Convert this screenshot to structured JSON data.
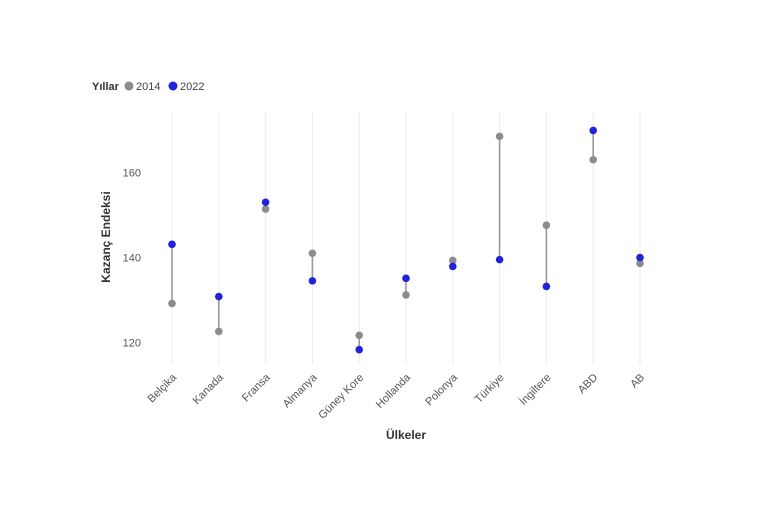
{
  "chart_data": {
    "type": "dumbbell",
    "xlabel": "Ülkeler",
    "ylabel": "Kazanç Endeksi",
    "ylim": [
      115,
      174
    ],
    "yticks": [
      120,
      140,
      160
    ],
    "grid": "vertical",
    "legend": {
      "title": "Yıllar",
      "placement": "top-left",
      "entries": [
        {
          "label": "2014",
          "color": "#8c8c8c"
        },
        {
          "label": "2022",
          "color": "#2222dd"
        }
      ]
    },
    "categories": [
      "Belçika",
      "Kanada",
      "Fransa",
      "Almanya",
      "Güney Kore",
      "Hollanda",
      "Polonya",
      "Türkiye",
      "İngiltere",
      "ABD",
      "AB"
    ],
    "series": [
      {
        "name": "2014",
        "color": "#8c8c8c",
        "values": [
          129.2,
          122.6,
          151.4,
          141.0,
          121.7,
          131.2,
          139.3,
          168.5,
          147.6,
          163.0,
          138.6
        ]
      },
      {
        "name": "2022",
        "color": "#2222dd",
        "values": [
          143.1,
          130.8,
          153.0,
          134.5,
          118.3,
          135.1,
          137.9,
          139.5,
          133.2,
          169.9,
          140.0
        ]
      }
    ]
  }
}
